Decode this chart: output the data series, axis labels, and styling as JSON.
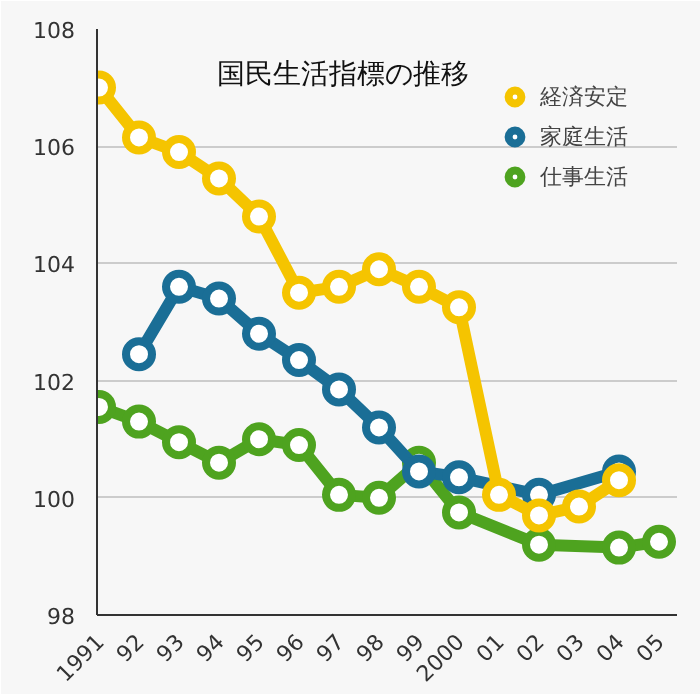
{
  "chart_data": {
    "type": "line",
    "title": "国民生活指標の推移",
    "categories": [
      "1991",
      "92",
      "93",
      "94",
      "95",
      "96",
      "97",
      "98",
      "99",
      "2000",
      "01",
      "02",
      "03",
      "04",
      "05"
    ],
    "series": [
      {
        "name": "経済安定",
        "color": "#f5c400",
        "values": [
          107.0,
          106.15,
          105.9,
          105.45,
          104.8,
          103.5,
          103.6,
          103.9,
          103.6,
          103.25,
          100.05,
          99.7,
          99.85,
          100.3,
          null
        ]
      },
      {
        "name": "家庭生活",
        "color": "#1a6e96",
        "values": [
          null,
          102.45,
          103.6,
          103.4,
          102.8,
          102.35,
          101.85,
          101.2,
          100.45,
          100.35,
          null,
          100.05,
          null,
          100.45,
          null
        ]
      },
      {
        "name": "仕事生活",
        "color": "#4ea31f",
        "values": [
          101.55,
          101.3,
          100.95,
          100.6,
          101.0,
          100.9,
          100.05,
          100.0,
          100.6,
          99.75,
          null,
          99.2,
          null,
          99.15,
          99.25
        ]
      }
    ],
    "ylim": [
      98,
      108
    ],
    "yticks": [
      98,
      100,
      102,
      104,
      106,
      108
    ],
    "grid": "y",
    "legend": "top right",
    "marker": "circle",
    "line_style": "solid"
  }
}
